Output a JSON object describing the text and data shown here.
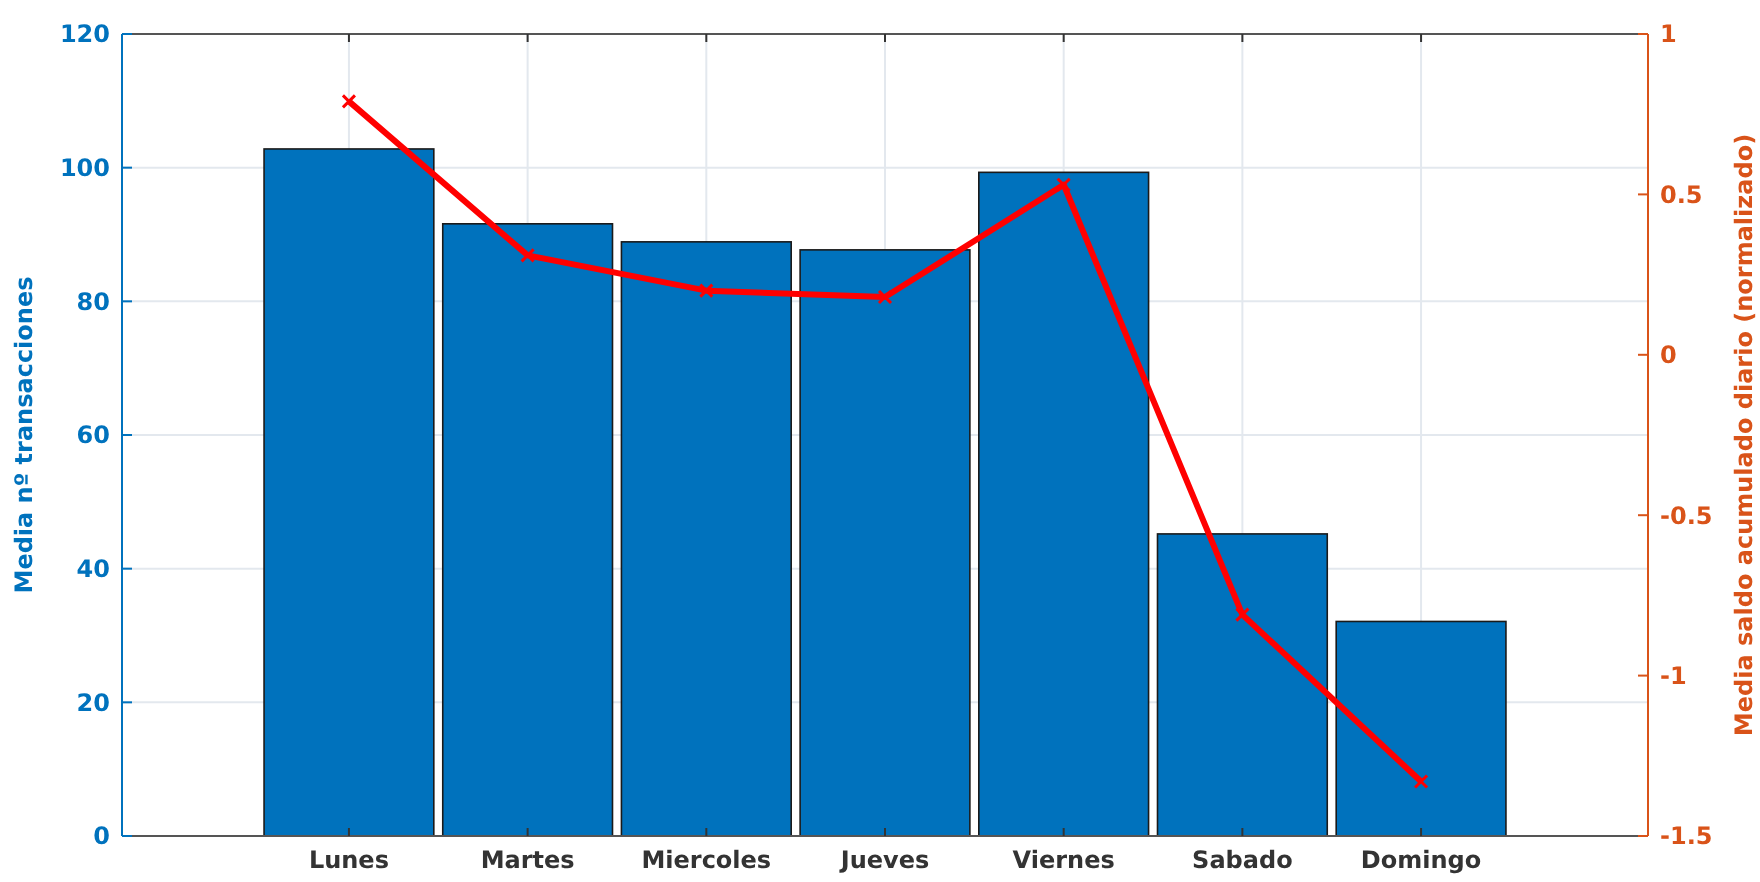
{
  "chart_data": {
    "type": "bar",
    "categories": [
      "Lunes",
      "Martes",
      "Miercoles",
      "Jueves",
      "Viernes",
      "Sabado",
      "Domingo"
    ],
    "ylabel": "Media nº transacciones",
    "y2label": "Media saldo acumulado diario (normalizado)",
    "ylim": [
      0,
      120
    ],
    "yticks": [
      0,
      20,
      40,
      60,
      80,
      100,
      120
    ],
    "y2lim": [
      -1.5,
      1
    ],
    "y2ticks": [
      -1.5,
      -1,
      -0.5,
      0,
      0.5,
      1
    ],
    "grid": true,
    "series": [
      {
        "color": "#0072bd",
        "values": [
          102.8,
          91.6,
          88.9,
          87.7,
          99.3,
          45.2,
          32.1
        ]
      },
      {
        "type": "line",
        "axis": "y2",
        "color": "#ff0000",
        "marker": "cross",
        "line_style": "solid",
        "values": [
          0.79,
          0.31,
          0.2,
          0.18,
          0.53,
          -0.81,
          -1.33
        ]
      }
    ]
  }
}
